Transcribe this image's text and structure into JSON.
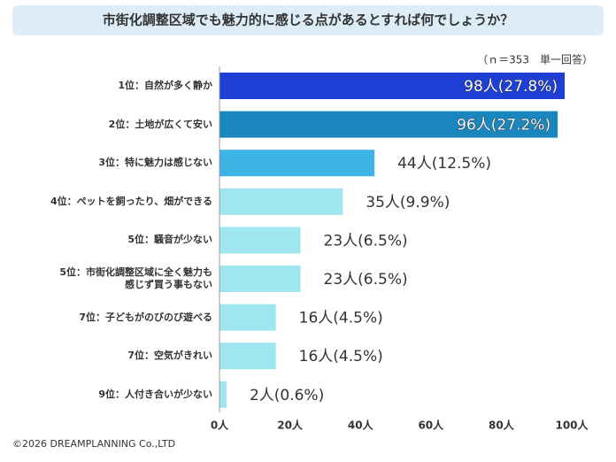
{
  "chart_data": {
    "type": "bar",
    "orientation": "horizontal",
    "title": "市街化調整区域でも魅力的に感じる点があるとすれば何でしょうか？",
    "subtitle": "（ｎ＝353　単一回答）",
    "categories": [
      "1位：自然が多く静か",
      "2位：土地が広くて安い",
      "3位：特に魅力は感じない",
      "4位：ペットを飼ったり、畑ができる",
      "5位：騒音が少ない",
      "5位：市街化調整区域に全く魅力も\n感じず買う事もない",
      "7位：子どもがのびのび遊べる",
      "7位：空気がきれい",
      "9位：人付き合いが少ない"
    ],
    "values": [
      98,
      96,
      44,
      35,
      23,
      23,
      16,
      16,
      2
    ],
    "value_labels": [
      "98人(27.8%)",
      "96人(27.2%)",
      "44人(12.5%)",
      "35人(9.9%)",
      "23人(6.5%)",
      "23人(6.5%)",
      "16人(4.5%)",
      "16人(4.5%)",
      "2人(0.6%)"
    ],
    "colors": [
      "#1d3fd6",
      "#1a86be",
      "#3cb4e6",
      "#9fe6f0",
      "#9fe6f0",
      "#9fe6f0",
      "#9fe6f0",
      "#9fe6f0",
      "#9fe6f0"
    ],
    "xlim": [
      0,
      100
    ],
    "xticks": [
      {
        "value": 0,
        "label": "0人"
      },
      {
        "value": 20,
        "label": "20人"
      },
      {
        "value": 40,
        "label": "40人"
      },
      {
        "value": 60,
        "label": "60人"
      },
      {
        "value": 80,
        "label": "80人"
      },
      {
        "value": 100,
        "label": "100人"
      }
    ],
    "footer": "©2026 DREAMPLANNING Co.,LTD"
  }
}
